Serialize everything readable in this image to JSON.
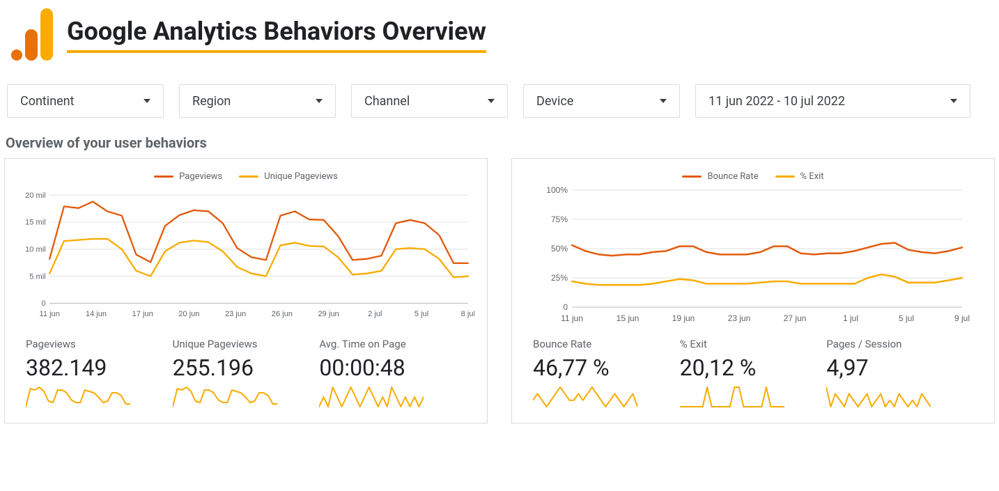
{
  "colors": {
    "orange_dark": "#e25a0b",
    "orange_light": "#f9ab00",
    "grid": "#e0e0e0",
    "axis": "#bdbdbd",
    "text_muted": "#5f6368",
    "text": "#202124",
    "border": "#dadce0",
    "bg": "#ffffff"
  },
  "header": {
    "title": "Google Analytics Behaviors Overview"
  },
  "filters": {
    "continent": "Continent",
    "region": "Region",
    "channel": "Channel",
    "device": "Device",
    "date": "11 jun 2022 - 10 jul 2022"
  },
  "section_title": "Overview of your user behaviors",
  "chart_left": {
    "type": "line",
    "legend": [
      "Pageviews",
      "Unique Pageviews"
    ],
    "legend_colors": [
      "#e25a0b",
      "#f9ab00"
    ],
    "y": {
      "min": 0,
      "max": 20,
      "step": 5,
      "unit": " mil"
    },
    "x_labels": [
      "11 jun",
      "14 jun",
      "17 jun",
      "20 jun",
      "23 jun",
      "26 jun",
      "29 jun",
      "2 jul",
      "5 jul",
      "8 jul"
    ],
    "series": [
      {
        "name": "Pageviews",
        "color": "#e25a0b",
        "values": [
          8.2,
          17.9,
          17.6,
          18.8,
          17.0,
          16.2,
          9.0,
          7.6,
          14.3,
          16.3,
          17.2,
          17.0,
          14.8,
          10.2,
          8.5,
          8.0,
          16.2,
          17.0,
          15.5,
          15.4,
          12.4,
          8.0,
          8.2,
          8.8,
          14.8,
          15.4,
          14.8,
          12.6,
          7.4,
          7.4
        ]
      },
      {
        "name": "Unique Pageviews",
        "color": "#f9ab00",
        "values": [
          5.5,
          11.5,
          11.7,
          11.9,
          11.9,
          10.0,
          6.0,
          5.0,
          9.6,
          11.2,
          11.6,
          11.3,
          9.6,
          6.7,
          5.5,
          5.0,
          10.7,
          11.2,
          10.6,
          10.5,
          8.5,
          5.3,
          5.5,
          6.0,
          10.0,
          10.2,
          10.0,
          8.2,
          4.8,
          5.0
        ]
      }
    ],
    "line_width": 2.5
  },
  "chart_right": {
    "type": "line",
    "legend": [
      "Bounce Rate",
      "% Exit"
    ],
    "legend_colors": [
      "#e25a0b",
      "#f9ab00"
    ],
    "y": {
      "min": 0,
      "max": 100,
      "step": 25,
      "unit": "%"
    },
    "x_labels": [
      "11 jun",
      "15 jun",
      "19 jun",
      "23 jun",
      "27 jun",
      "1 jul",
      "5 jul",
      "9 jul"
    ],
    "series": [
      {
        "name": "Bounce Rate",
        "color": "#e25a0b",
        "values": [
          53,
          48,
          45,
          44,
          45,
          45,
          47,
          48,
          52,
          52,
          47,
          45,
          45,
          45,
          47,
          52,
          52,
          46,
          45,
          46,
          46,
          48,
          51,
          54,
          55,
          49,
          47,
          46,
          48,
          51
        ]
      },
      {
        "name": "% Exit",
        "color": "#f9ab00",
        "values": [
          22,
          20,
          19,
          19,
          19,
          19,
          20,
          22,
          24,
          23,
          20,
          20,
          20,
          20,
          21,
          22,
          22,
          20,
          20,
          20,
          20,
          20,
          25,
          28,
          26,
          21,
          21,
          21,
          23,
          25
        ]
      }
    ],
    "line_width": 2.5
  },
  "metrics_left": [
    {
      "label": "Pageviews",
      "value": "382.149",
      "spark": [
        5,
        18,
        17,
        19,
        16,
        9,
        8,
        17,
        17,
        15,
        10,
        8,
        8,
        17,
        16,
        15,
        12,
        8,
        9,
        15,
        15,
        13,
        7,
        7
      ]
    },
    {
      "label": "Unique Pageviews",
      "value": "255.196",
      "spark": [
        5,
        18,
        17,
        19,
        16,
        9,
        8,
        17,
        17,
        15,
        10,
        8,
        8,
        17,
        16,
        15,
        12,
        8,
        9,
        15,
        15,
        13,
        7,
        7
      ]
    },
    {
      "label": "Avg. Time on Page",
      "value": "00:00:48",
      "spark": [
        10,
        11,
        10,
        12,
        11,
        10,
        11,
        12,
        11,
        10,
        11,
        12,
        11,
        10,
        11,
        10,
        12,
        11,
        10,
        11,
        10,
        11,
        10,
        11
      ]
    }
  ],
  "metrics_right": [
    {
      "label": "Bounce Rate",
      "value": "46,77 %",
      "spark": [
        10,
        11,
        10,
        9,
        10,
        11,
        12,
        11,
        10,
        10,
        11,
        10,
        11,
        12,
        11,
        10,
        9,
        10,
        11,
        10,
        9,
        10,
        11,
        9
      ]
    },
    {
      "label": "% Exit",
      "value": "20,12 %",
      "spark": [
        10,
        10,
        10,
        10,
        10,
        10,
        11,
        10,
        10,
        10,
        10,
        10,
        11,
        11,
        10,
        10,
        10,
        10,
        10,
        11,
        10,
        10,
        10,
        10
      ]
    },
    {
      "label": "Pages / Session",
      "value": "4,97",
      "spark": [
        15,
        12,
        14,
        13,
        12,
        14,
        13,
        12,
        13,
        14,
        12,
        13,
        14,
        12,
        13,
        12,
        14,
        13,
        12,
        13,
        12,
        14,
        13,
        12
      ]
    }
  ],
  "spark_color": "#f9ab00"
}
